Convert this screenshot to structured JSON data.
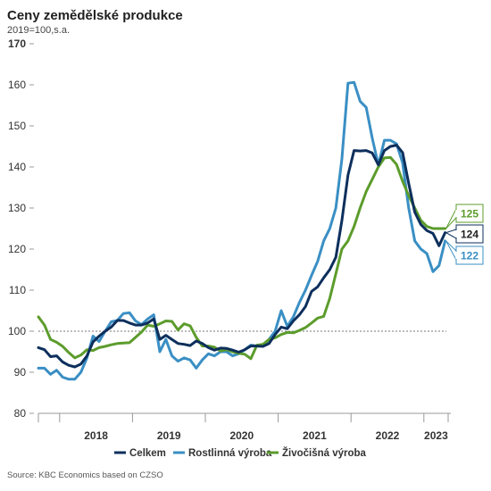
{
  "title": "Ceny zemědělské produkce",
  "subtitle": "2019=100,s.a.",
  "source": "Source: KBC Economics based on CZSO",
  "colors": {
    "celkem": "#0d2f5c",
    "rostlinna": "#3a8fc4",
    "zivocisna": "#5c9c2c",
    "axis": "#999999",
    "reference": "#777777"
  },
  "chart_data": {
    "type": "line",
    "title": "Ceny zemědělské produkce",
    "subtitle": "2019=100,s.a.",
    "ylim": [
      80,
      170
    ],
    "yticks": [
      "80",
      "90",
      "100",
      "110",
      "120",
      "130",
      "140",
      "150",
      "160",
      "170"
    ],
    "x_labels": [
      "2018",
      "2019",
      "2020",
      "2021",
      "2022",
      "2023"
    ],
    "x_start": "2017-09",
    "x_end": "2023-09",
    "grid": false,
    "reference_line": 100,
    "legend_position": "bottom",
    "series": [
      {
        "name": "Celkem",
        "color": "#0d2f5c",
        "end_label": "124",
        "values": [
          96,
          95.5,
          93.8,
          94,
          92.5,
          91.7,
          91.3,
          92,
          94,
          97.4,
          98.8,
          100,
          101,
          102.6,
          102.6,
          102,
          101.5,
          101.5,
          102,
          103,
          98,
          99,
          98,
          97,
          96.8,
          96.5,
          97.6,
          97,
          96,
          95.4,
          95.9,
          95.8,
          95.4,
          94.9,
          95.5,
          96.4,
          96.4,
          96.3,
          97,
          99.2,
          101,
          100.6,
          102.5,
          104,
          106,
          109.7,
          110.8,
          113,
          115,
          118,
          127,
          138,
          144,
          143.9,
          144,
          143.4,
          140.5,
          144,
          145,
          145.3,
          143.5,
          136,
          129,
          126,
          124.5,
          123.8,
          120.8,
          124
        ]
      },
      {
        "name": "Rostlinná výroba",
        "color": "#3a8fc4",
        "end_label": "122",
        "values": [
          91,
          91,
          89.5,
          90.5,
          88.8,
          88.3,
          88.3,
          90,
          93.5,
          98.8,
          97.5,
          100,
          102.3,
          102.6,
          104.3,
          104.5,
          102.5,
          101.6,
          103,
          104,
          95,
          98,
          94,
          92.7,
          93.5,
          93,
          91,
          93,
          94.5,
          94,
          95,
          95,
          94,
          94.5,
          95.5,
          96.6,
          96.4,
          96.4,
          98,
          100,
          105,
          101.2,
          103.5,
          107,
          110,
          113.6,
          117,
          122,
          125,
          130,
          142,
          160.4,
          160.6,
          156,
          154.5,
          147,
          140.5,
          146.5,
          146.5,
          145.6,
          141,
          130,
          122,
          120,
          118.9,
          114.5,
          116,
          122
        ]
      },
      {
        "name": "Živočišná výroba",
        "color": "#5c9c2c",
        "end_label": "125",
        "values": [
          103.5,
          101.5,
          98,
          97.3,
          96.3,
          94.8,
          93.5,
          94.2,
          95.5,
          95.3,
          96,
          96.3,
          96.7,
          97,
          97.1,
          97.2,
          98.5,
          99.8,
          101.5,
          101.2,
          101.8,
          102.5,
          102.4,
          100.3,
          101.8,
          101.3,
          98.5,
          96.4,
          96.4,
          96.1,
          95.2,
          95.5,
          95,
          94.6,
          94.4,
          93.3,
          96.6,
          96.8,
          98,
          98.4,
          99.2,
          99.7,
          99.6,
          100.2,
          100.9,
          102,
          103.2,
          103.6,
          108,
          114,
          120,
          122,
          125.5,
          130,
          134,
          137,
          140,
          142.2,
          142.3,
          140.6,
          136.5,
          133,
          130,
          127,
          125.5,
          125,
          125,
          125
        ]
      }
    ]
  }
}
